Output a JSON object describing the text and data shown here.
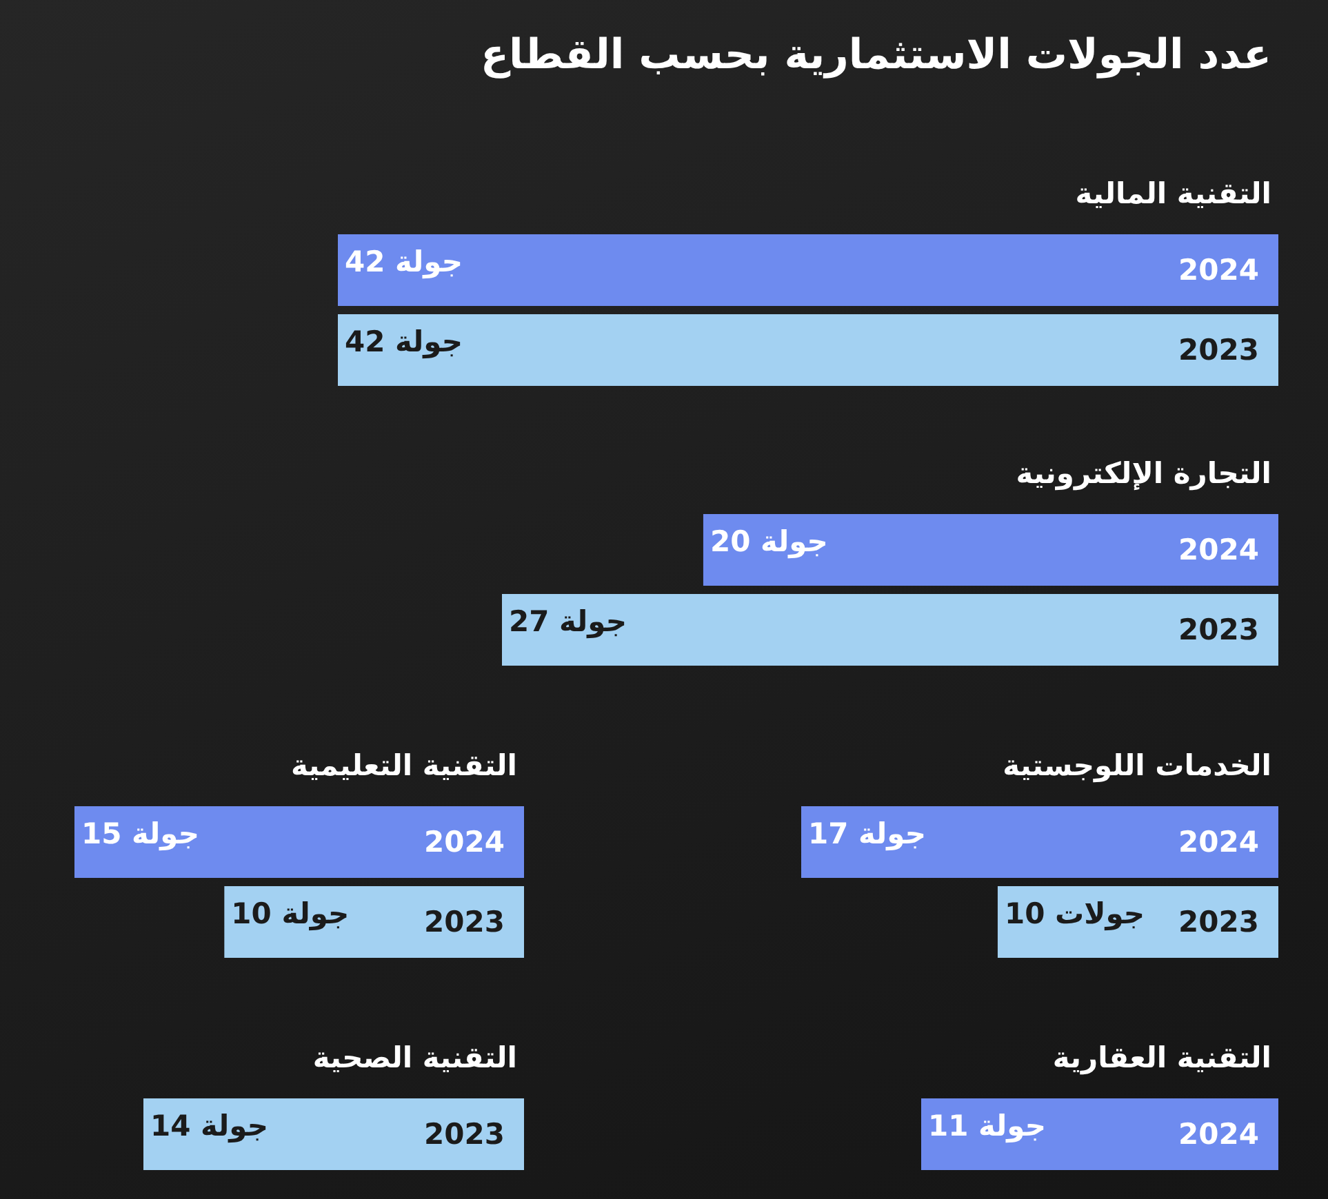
{
  "chart_data": [
    {
      "type": "other",
      "title": "عدد الجولات الاستثمارية بحسب القطاع"
    },
    {
      "type": "bar",
      "orientation": "horizontal",
      "title": "التقنية المالية",
      "categories": [
        "2024",
        "2023"
      ],
      "values": [
        42,
        42
      ],
      "colors": [
        "#6e8bef",
        "#a3d1f2"
      ],
      "value_labels": [
        "42 جولة",
        "42 جولة"
      ]
    },
    {
      "type": "bar",
      "orientation": "horizontal",
      "title": "التجارة الإلكترونية",
      "categories": [
        "2024",
        "2023"
      ],
      "values": [
        20,
        27
      ],
      "colors": [
        "#6e8bef",
        "#a3d1f2"
      ],
      "value_labels": [
        "20 جولة",
        "27 جولة"
      ]
    },
    {
      "type": "bar",
      "orientation": "horizontal",
      "title": "الخدمات اللوجستية",
      "categories": [
        "2024",
        "2023"
      ],
      "values": [
        17,
        10
      ],
      "colors": [
        "#6e8bef",
        "#a3d1f2"
      ],
      "value_labels": [
        "17 جولة",
        "10 جولات"
      ]
    },
    {
      "type": "bar",
      "orientation": "horizontal",
      "title": "التقنية التعليمية",
      "categories": [
        "2024",
        "2023"
      ],
      "values": [
        15,
        10
      ],
      "colors": [
        "#6e8bef",
        "#a3d1f2"
      ],
      "value_labels": [
        "15 جولة",
        "10 جولة"
      ]
    },
    {
      "type": "bar",
      "orientation": "horizontal",
      "title": "التقنية العقارية",
      "categories": [
        "2024"
      ],
      "values": [
        11
      ],
      "colors": [
        "#6e8bef"
      ],
      "value_labels": [
        "11 جولة"
      ]
    },
    {
      "type": "bar",
      "orientation": "horizontal",
      "title": "التقنية الصحية",
      "categories": [
        "2023"
      ],
      "values": [
        14
      ],
      "colors": [
        "#a3d1f2"
      ],
      "value_labels": [
        "14 جولة"
      ]
    }
  ]
}
